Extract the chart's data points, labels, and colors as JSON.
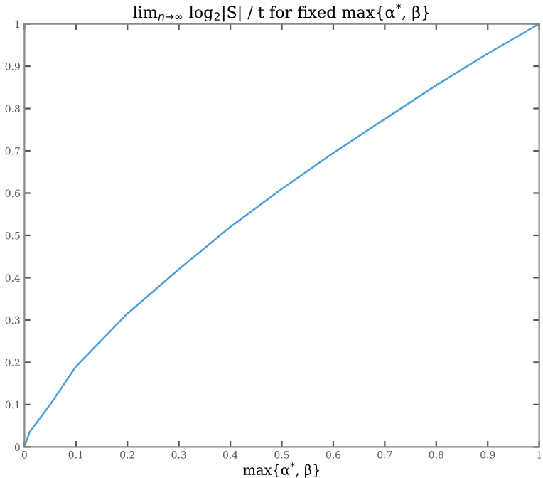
{
  "chart_data": {
    "type": "line",
    "title": "lim$_{n→∞}$ log$_{2}$|S| / t for fixed max{α$^{*}$, β}",
    "xlabel": "max{α$^{*}$, β}",
    "x": [
      0,
      0.01,
      0.05,
      0.1,
      0.2,
      0.3,
      0.4,
      0.5,
      0.6,
      0.7,
      0.8,
      0.9,
      1
    ],
    "series": [
      {
        "color": "#4a9fdc",
        "values": [
          0,
          0.035,
          0.1,
          0.19,
          0.315,
          0.42,
          0.52,
          0.61,
          0.695,
          0.775,
          0.855,
          0.93,
          1
        ]
      }
    ],
    "xlim": [
      0,
      1
    ],
    "ylim": [
      0,
      1
    ],
    "xticks": [
      0,
      0.1,
      0.2,
      0.3,
      0.4,
      0.5,
      0.6,
      0.7,
      0.8,
      0.9,
      1
    ],
    "yticks": [
      0,
      0.1,
      0.2,
      0.3,
      0.4,
      0.5,
      0.6,
      0.7,
      0.8,
      0.9,
      1
    ],
    "grid": false,
    "marker": "none",
    "line_style": "solid"
  }
}
